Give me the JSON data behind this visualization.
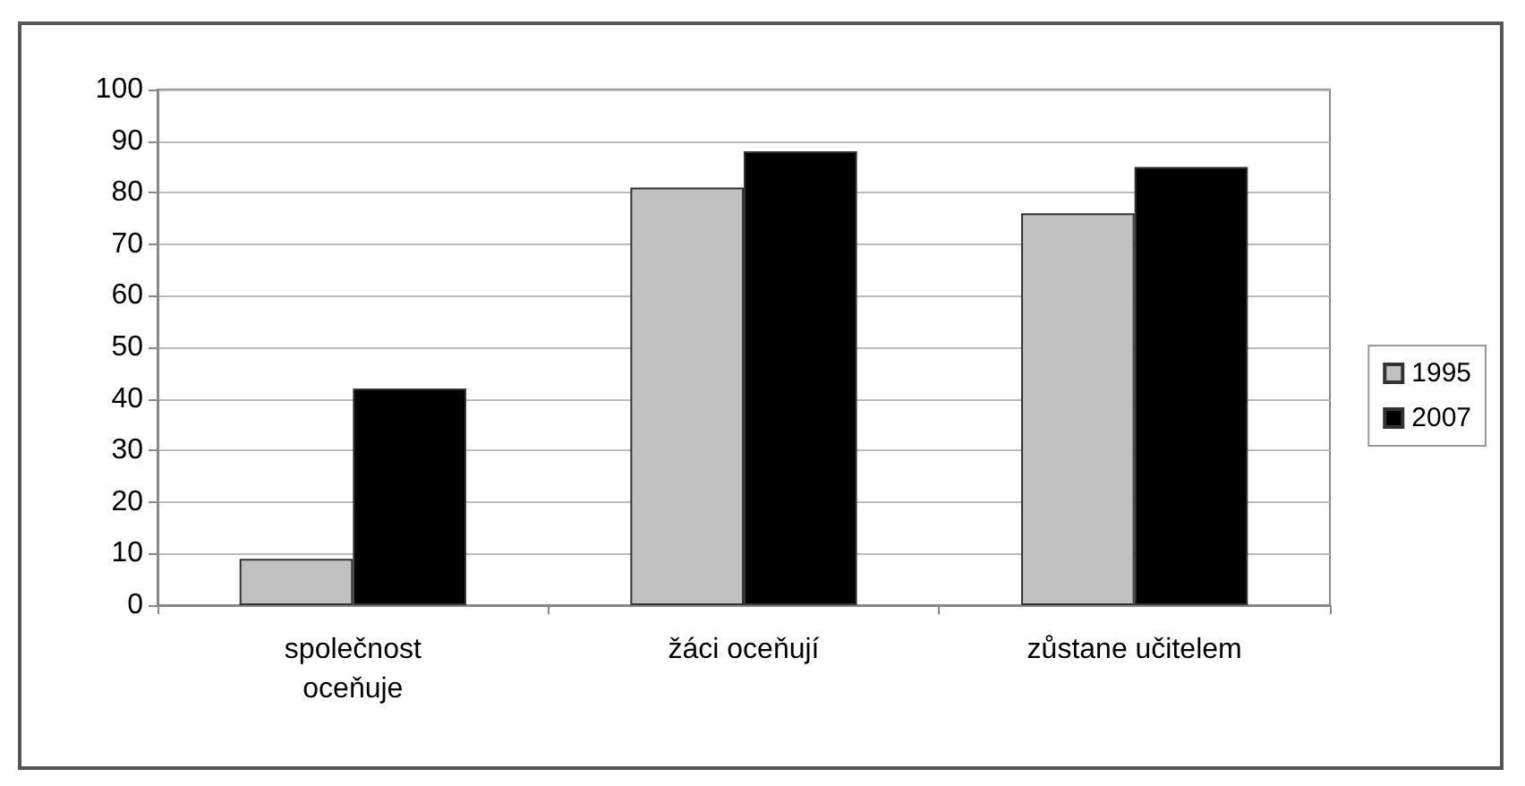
{
  "chart_data": {
    "type": "bar",
    "categories": [
      "společnost\noceňuje",
      "žáci oceňují",
      "zůstane učitelem"
    ],
    "series": [
      {
        "name": "1995",
        "color": "#c0c0c0",
        "values": [
          9,
          81,
          76
        ]
      },
      {
        "name": "2007",
        "color": "#000000",
        "values": [
          42,
          88,
          85
        ]
      }
    ],
    "ylim": [
      0,
      100
    ],
    "yticks": [
      0,
      10,
      20,
      30,
      40,
      50,
      60,
      70,
      80,
      90,
      100
    ],
    "grid": "y",
    "legend": "right"
  }
}
